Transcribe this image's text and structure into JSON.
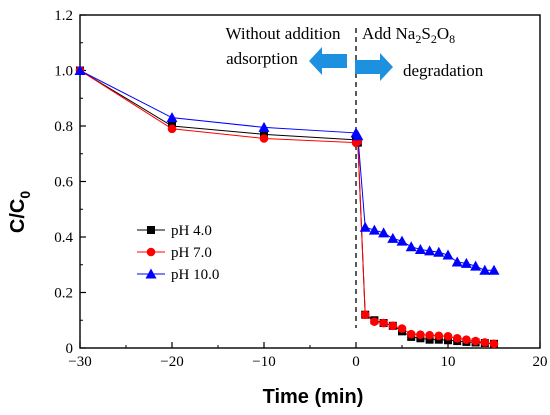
{
  "chart_data": {
    "type": "line",
    "xlabel": "Time (min)",
    "ylabel_main": "C/C",
    "ylabel_sub": "0",
    "xlim": [
      -30,
      20
    ],
    "ylim": [
      0,
      1.2
    ],
    "xticks": [
      -30,
      -20,
      -10,
      0,
      10,
      20
    ],
    "yticks": [
      0,
      0.2,
      0.4,
      0.6,
      0.8,
      1.0,
      1.2
    ],
    "xtick_labels": [
      "−30",
      "−20",
      "−10",
      "0",
      "10",
      "20"
    ],
    "ytick_labels": [
      "0",
      "0.2",
      "0.4",
      "0.6",
      "0.8",
      "1.0",
      "1.2"
    ],
    "legend_position": "left-middle",
    "annotations": {
      "left_text_line1": "Without addition",
      "left_text_line2": "adsorption",
      "right_text_prefix": "Add Na",
      "right_sub1": "2",
      "right_mid1": "S",
      "right_sub2": "2",
      "right_mid2": "O",
      "right_sub3": "8",
      "right_text_line2": "degradation"
    },
    "series": [
      {
        "name": "pH 4.0",
        "color": "#000000",
        "marker": "square",
        "x": [
          -30,
          -20,
          -10,
          0,
          0.2,
          1,
          2,
          3,
          4,
          5,
          6,
          7,
          8,
          9,
          10,
          11,
          12,
          13,
          14,
          15
        ],
        "y": [
          1.0,
          0.8,
          0.77,
          0.75,
          0.74,
          0.12,
          0.1,
          0.09,
          0.08,
          0.06,
          0.04,
          0.035,
          0.03,
          0.03,
          0.028,
          0.025,
          0.022,
          0.02,
          0.018,
          0.015
        ]
      },
      {
        "name": "pH 7.0",
        "color": "#ff0000",
        "marker": "circle",
        "x": [
          -30,
          -20,
          -10,
          0,
          0.2,
          1,
          2,
          3,
          4,
          5,
          6,
          7,
          8,
          9,
          10,
          11,
          12,
          13,
          14,
          15
        ],
        "y": [
          1.0,
          0.79,
          0.755,
          0.74,
          0.745,
          0.12,
          0.095,
          0.09,
          0.08,
          0.07,
          0.05,
          0.048,
          0.046,
          0.044,
          0.042,
          0.035,
          0.03,
          0.025,
          0.02,
          0.015
        ]
      },
      {
        "name": "pH 10.0",
        "color": "#0000ff",
        "marker": "triangle",
        "x": [
          -30,
          -20,
          -10,
          0,
          0.2,
          1,
          2,
          3,
          4,
          5,
          6,
          7,
          8,
          9,
          10,
          11,
          12,
          13,
          14,
          15
        ],
        "y": [
          1.0,
          0.83,
          0.795,
          0.775,
          0.765,
          0.435,
          0.425,
          0.415,
          0.395,
          0.385,
          0.365,
          0.355,
          0.35,
          0.345,
          0.335,
          0.31,
          0.305,
          0.295,
          0.28,
          0.28
        ]
      }
    ]
  }
}
